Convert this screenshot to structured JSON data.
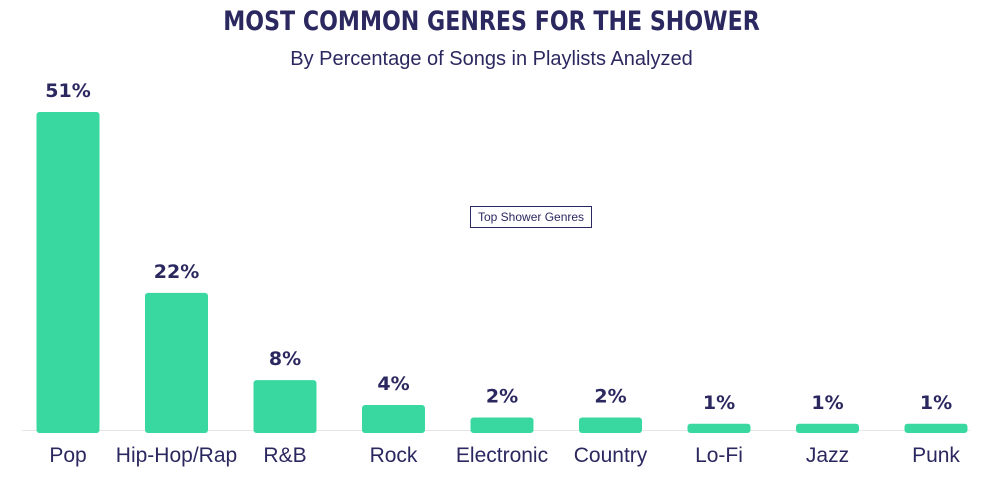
{
  "chart_data": {
    "type": "bar",
    "title": "MOST COMMON GENRES FOR THE SHOWER",
    "subtitle": "By Percentage of Songs in Playlists Analyzed",
    "categories": [
      "Pop",
      "Hip-Hop/Rap",
      "R&B",
      "Rock",
      "Electronic",
      "Country",
      "Lo-Fi",
      "Jazz",
      "Punk"
    ],
    "values": [
      51,
      22,
      8,
      4,
      2,
      2,
      1,
      1,
      1
    ],
    "data_labels": [
      "51%",
      "22%",
      "8%",
      "4%",
      "2%",
      "2%",
      "1%",
      "1%",
      "1%"
    ],
    "legend": "Top Shower Genres",
    "legend_position": "center",
    "bar_color": "#39d8a0",
    "text_color": "#2b2860",
    "ylim": [
      0,
      51
    ],
    "grid": false
  }
}
